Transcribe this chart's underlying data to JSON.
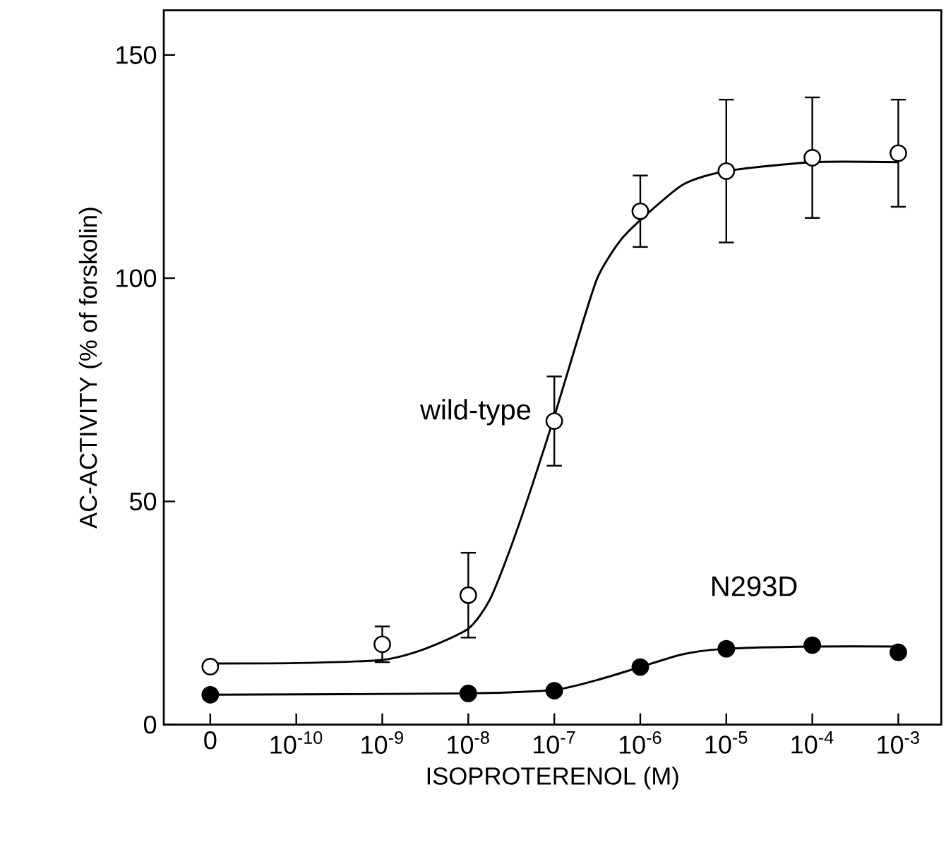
{
  "chart_data": {
    "type": "line",
    "xlabel": "ISOPROTERENOL (M)",
    "ylabel": "AC-ACTIVITY (% of forskolin)",
    "log": "x",
    "xlim": [
      2.88e-12,
      0.00316
    ],
    "ylim": [
      0,
      160
    ],
    "xticks": [
      {
        "value": 1e-11,
        "label": "0"
      },
      {
        "value": 1e-10,
        "label": "10$^{-10}$"
      },
      {
        "value": 1e-09,
        "label": "10$^{-9}$"
      },
      {
        "value": 1e-08,
        "label": "10$^{-8}$"
      },
      {
        "value": 1e-07,
        "label": "10$^{-7}$"
      },
      {
        "value": 1e-06,
        "label": "10$^{-6}$"
      },
      {
        "value": 1e-05,
        "label": "10$^{-5}$"
      },
      {
        "value": 0.0001,
        "label": "10$^{-4}$"
      },
      {
        "value": 0.001,
        "label": "10$^{-3}$"
      }
    ],
    "yticks": [
      0,
      50,
      100,
      150
    ],
    "grid": false,
    "legend": false,
    "series": [
      {
        "marker": "none",
        "color": "#000000",
        "x": [
          1e-11,
          1e-10,
          1e-09,
          3.16e-09,
          1e-08,
          1.78e-08,
          3.16e-08,
          5.62e-08,
          1e-07,
          1.78e-07,
          3.16e-07,
          5.62e-07,
          1e-06,
          3.16e-06,
          1e-05,
          0.0001,
          0.001
        ],
        "values": [
          13.7,
          13.8,
          14.5,
          17,
          21.5,
          28,
          40,
          54,
          69,
          85,
          100,
          108,
          113,
          121,
          124,
          126,
          126
        ]
      },
      {
        "marker": "none",
        "color": "#000000",
        "x": [
          1e-11,
          1e-08,
          1e-07,
          3.16e-07,
          1e-06,
          3.16e-06,
          1e-05,
          0.0001,
          0.001
        ],
        "values": [
          6.7,
          7,
          7.8,
          10,
          12.9,
          15.8,
          17,
          17.5,
          17.5
        ]
      },
      {
        "type": "scatter",
        "marker": "circle",
        "name": "wild-type",
        "color": "#000000",
        "x": [
          1e-11,
          1e-09,
          1e-08,
          1e-07,
          1e-06,
          1e-05,
          0.0001,
          0.001
        ],
        "values": [
          13,
          18,
          29,
          68,
          115,
          124,
          127,
          128
        ],
        "errors": [
          null,
          4,
          9.5,
          10,
          8,
          16,
          13.5,
          12
        ]
      },
      {
        "type": "scatter",
        "marker": "circle",
        "name": "N293D",
        "color": "#000000",
        "x": [
          1e-11,
          1e-08,
          1e-07,
          1e-06,
          1e-05,
          0.0001,
          0.001
        ],
        "values": [
          6.7,
          7,
          7.6,
          12.9,
          17,
          17.8,
          16.2
        ]
      }
    ]
  }
}
